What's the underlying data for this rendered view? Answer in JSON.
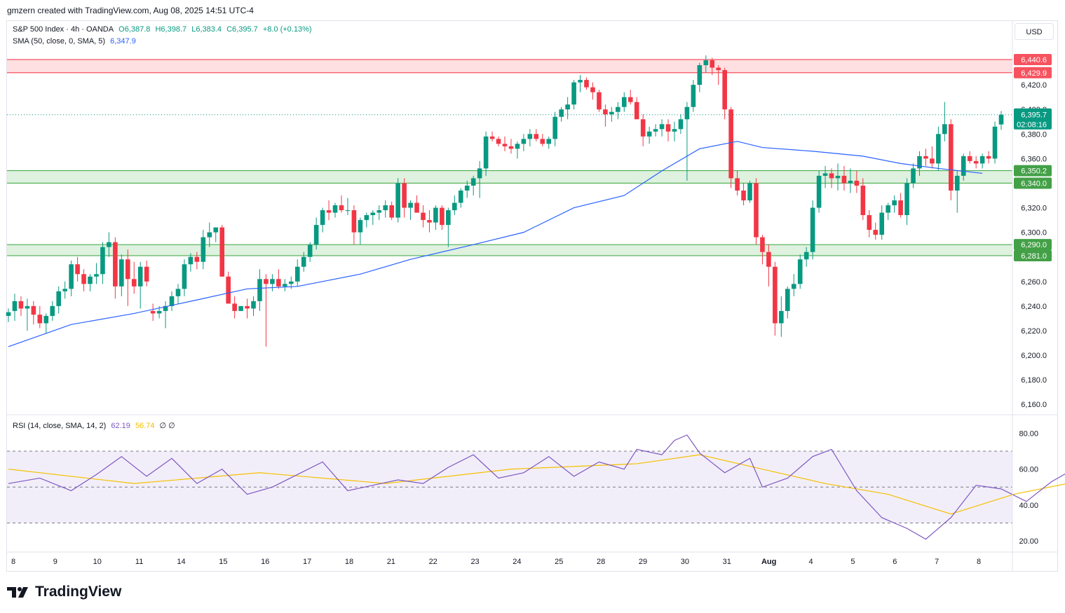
{
  "header": {
    "text": "gmzern created with TradingView.com, Aug 08, 2025 14:51 UTC-4"
  },
  "legend": {
    "symbol": "S&P 500 Index · 4h · OANDA",
    "o": "O6,387.8",
    "h": "H6,398.7",
    "l": "L6,383.4",
    "c": "C6,395.7",
    "chg": "+8.0 (+0.13%)",
    "sma_label": "SMA (50, close, 0, SMA, 5)",
    "sma_value": "6,347.9",
    "rsi_label": "RSI (14, close, SMA, 14, 2)",
    "rsi_value": "62.19",
    "rsi_sma_value": "56.74",
    "rsi_extra": "∅ ∅"
  },
  "currency": "USD",
  "brand": "TradingView",
  "colors": {
    "up": "#089981",
    "down": "#f23645",
    "sma": "#2962ff",
    "rsi": "#7e57c2",
    "rsi_sma": "#f5c000",
    "zone_red": "#f7525f",
    "zone_green": "#4caf50"
  },
  "chart_data": {
    "type": "candlestick",
    "symbol": "S&P 500 Index",
    "interval": "4h",
    "ylim": [
      6155,
      6448
    ],
    "price_ticks": [
      6160,
      6180,
      6200,
      6220,
      6240,
      6260,
      6280,
      6300,
      6320,
      6340,
      6360,
      6380,
      6400,
      6420
    ],
    "price_tick_labels": [
      "6,160.0",
      "6,180.0",
      "6,200.0",
      "6,220.0",
      "6,240.0",
      "6,260.0",
      "6,280.0",
      "6,300.0",
      "6,320.0",
      "6,340.0",
      "6,360.0",
      "6,380.0",
      "6,400.0",
      "6,420.0"
    ],
    "x_labels": [
      "8",
      "9",
      "10",
      "11",
      "14",
      "15",
      "16",
      "17",
      "18",
      "21",
      "22",
      "23",
      "24",
      "25",
      "28",
      "29",
      "30",
      "31",
      "Aug",
      "4",
      "5",
      "6",
      "7",
      "8"
    ],
    "zones": [
      {
        "color": "red",
        "low": 6429.9,
        "high": 6440.6,
        "low_label": "6,429.9",
        "high_label": "6,440.6"
      },
      {
        "color": "green",
        "low": 6340.0,
        "high": 6350.2,
        "low_label": "6,340.0",
        "high_label": "6,350.2"
      },
      {
        "color": "green",
        "low": 6281.0,
        "high": 6290.0,
        "low_label": "6,281.0",
        "high_label": "6,290.0"
      }
    ],
    "last_price": 6395.7,
    "last_price_label": "6,395.7",
    "countdown": "02:08:16",
    "candles": [
      [
        6232,
        6238,
        6227,
        6235
      ],
      [
        6236,
        6250,
        6228,
        6244
      ],
      [
        6244,
        6248,
        6232,
        6238
      ],
      [
        6238,
        6246,
        6220,
        6240
      ],
      [
        6240,
        6244,
        6225,
        6233
      ],
      [
        6233,
        6240,
        6222,
        6226
      ],
      [
        6226,
        6234,
        6218,
        6232
      ],
      [
        6232,
        6244,
        6228,
        6240
      ],
      [
        6240,
        6256,
        6234,
        6252
      ],
      [
        6252,
        6260,
        6246,
        6254
      ],
      [
        6254,
        6277,
        6248,
        6274
      ],
      [
        6274,
        6280,
        6260,
        6266
      ],
      [
        6266,
        6270,
        6252,
        6258
      ],
      [
        6258,
        6266,
        6252,
        6264
      ],
      [
        6264,
        6275,
        6258,
        6266
      ],
      [
        6266,
        6292,
        6258,
        6288
      ],
      [
        6288,
        6300,
        6280,
        6292
      ],
      [
        6292,
        6296,
        6246,
        6256
      ],
      [
        6256,
        6282,
        6248,
        6278
      ],
      [
        6278,
        6286,
        6240,
        6262
      ],
      [
        6262,
        6276,
        6250,
        6256
      ],
      [
        6256,
        6276,
        6238,
        6272
      ],
      [
        6272,
        6277,
        6256,
        6260
      ],
      [
        6236,
        6242,
        6228,
        6234
      ],
      [
        6234,
        6240,
        6230,
        6236
      ],
      [
        6236,
        6244,
        6222,
        6240
      ],
      [
        6240,
        6252,
        6236,
        6248
      ],
      [
        6248,
        6258,
        6242,
        6254
      ],
      [
        6254,
        6278,
        6248,
        6274
      ],
      [
        6274,
        6283,
        6268,
        6280
      ],
      [
        6280,
        6284,
        6270,
        6276
      ],
      [
        6276,
        6302,
        6270,
        6296
      ],
      [
        6296,
        6308,
        6288,
        6300
      ],
      [
        6300,
        6304,
        6292,
        6304
      ],
      [
        6304,
        6306,
        6264,
        6264
      ],
      [
        6264,
        6268,
        6242,
        6242
      ],
      [
        6242,
        6248,
        6230,
        6236
      ],
      [
        6236,
        6240,
        6236,
        6240
      ],
      [
        6240,
        6246,
        6230,
        6238
      ],
      [
        6238,
        6248,
        6232,
        6244
      ],
      [
        6244,
        6270,
        6236,
        6262
      ],
      [
        6262,
        6266,
        6207,
        6258
      ],
      [
        6258,
        6266,
        6252,
        6262
      ],
      [
        6262,
        6270,
        6254,
        6256
      ],
      [
        6256,
        6262,
        6252,
        6258
      ],
      [
        6258,
        6264,
        6254,
        6260
      ],
      [
        6260,
        6278,
        6256,
        6272
      ],
      [
        6272,
        6284,
        6268,
        6280
      ],
      [
        6280,
        6292,
        6276,
        6290
      ],
      [
        6290,
        6312,
        6286,
        6306
      ],
      [
        6306,
        6320,
        6300,
        6318
      ],
      [
        6318,
        6326,
        6310,
        6316
      ],
      [
        6316,
        6324,
        6312,
        6322
      ],
      [
        6322,
        6330,
        6316,
        6318
      ],
      [
        6318,
        6328,
        6314,
        6318
      ],
      [
        6318,
        6322,
        6290,
        6300
      ],
      [
        6300,
        6312,
        6290,
        6310
      ],
      [
        6310,
        6316,
        6304,
        6314
      ],
      [
        6314,
        6318,
        6306,
        6316
      ],
      [
        6316,
        6322,
        6310,
        6318
      ],
      [
        6318,
        6326,
        6312,
        6322
      ],
      [
        6322,
        6325,
        6310,
        6312
      ],
      [
        6312,
        6344,
        6308,
        6340
      ],
      [
        6340,
        6344,
        6312,
        6320
      ],
      [
        6320,
        6326,
        6310,
        6324
      ],
      [
        6324,
        6330,
        6316,
        6316
      ],
      [
        6316,
        6322,
        6304,
        6310
      ],
      [
        6310,
        6318,
        6300,
        6308
      ],
      [
        6308,
        6322,
        6302,
        6320
      ],
      [
        6320,
        6322,
        6302,
        6306
      ],
      [
        6306,
        6320,
        6288,
        6318
      ],
      [
        6318,
        6330,
        6314,
        6324
      ],
      [
        6324,
        6336,
        6320,
        6334
      ],
      [
        6334,
        6342,
        6328,
        6338
      ],
      [
        6338,
        6346,
        6330,
        6344
      ],
      [
        6344,
        6358,
        6328,
        6352
      ],
      [
        6352,
        6382,
        6346,
        6378
      ],
      [
        6378,
        6382,
        6374,
        6376
      ],
      [
        6376,
        6378,
        6370,
        6372
      ],
      [
        6372,
        6378,
        6366,
        6370
      ],
      [
        6370,
        6376,
        6364,
        6368
      ],
      [
        6368,
        6374,
        6360,
        6372
      ],
      [
        6372,
        6380,
        6366,
        6376
      ],
      [
        6376,
        6384,
        6370,
        6380
      ],
      [
        6380,
        6384,
        6374,
        6376
      ],
      [
        6376,
        6380,
        6370,
        6372
      ],
      [
        6372,
        6378,
        6368,
        6376
      ],
      [
        6376,
        6398,
        6370,
        6394
      ],
      [
        6394,
        6402,
        6390,
        6400
      ],
      [
        6400,
        6410,
        6392,
        6404
      ],
      [
        6404,
        6424,
        6400,
        6422
      ],
      [
        6422,
        6428,
        6414,
        6424
      ],
      [
        6424,
        6426,
        6416,
        6418
      ],
      [
        6418,
        6422,
        6408,
        6414
      ],
      [
        6414,
        6416,
        6398,
        6400
      ],
      [
        6400,
        6404,
        6386,
        6396
      ],
      [
        6396,
        6402,
        6390,
        6398
      ],
      [
        6398,
        6406,
        6392,
        6402
      ],
      [
        6402,
        6414,
        6398,
        6410
      ],
      [
        6410,
        6416,
        6404,
        6406
      ],
      [
        6406,
        6410,
        6392,
        6392
      ],
      [
        6392,
        6396,
        6370,
        6378
      ],
      [
        6378,
        6386,
        6372,
        6382
      ],
      [
        6382,
        6388,
        6378,
        6384
      ],
      [
        6384,
        6392,
        6378,
        6388
      ],
      [
        6388,
        6392,
        6374,
        6382
      ],
      [
        6382,
        6390,
        6374,
        6384
      ],
      [
        6384,
        6396,
        6380,
        6392
      ],
      [
        6392,
        6406,
        6342,
        6402
      ],
      [
        6402,
        6424,
        6398,
        6420
      ],
      [
        6420,
        6438,
        6414,
        6436
      ],
      [
        6436,
        6444,
        6430,
        6440
      ],
      [
        6440,
        6442,
        6428,
        6434
      ],
      [
        6434,
        6436,
        6420,
        6432
      ],
      [
        6432,
        6434,
        6392,
        6400
      ],
      [
        6400,
        6402,
        6336,
        6344
      ],
      [
        6344,
        6350,
        6330,
        6334
      ],
      [
        6334,
        6340,
        6322,
        6326
      ],
      [
        6326,
        6342,
        6324,
        6340
      ],
      [
        6340,
        6344,
        6290,
        6296
      ],
      [
        6296,
        6298,
        6274,
        6284
      ],
      [
        6284,
        6290,
        6256,
        6272
      ],
      [
        6272,
        6276,
        6216,
        6226
      ],
      [
        6226,
        6248,
        6215,
        6236
      ],
      [
        6236,
        6256,
        6230,
        6254
      ],
      [
        6254,
        6266,
        6248,
        6258
      ],
      [
        6258,
        6282,
        6254,
        6278
      ],
      [
        6278,
        6288,
        6272,
        6284
      ],
      [
        6284,
        6326,
        6278,
        6320
      ],
      [
        6320,
        6350,
        6316,
        6346
      ],
      [
        6346,
        6354,
        6336,
        6348
      ],
      [
        6348,
        6352,
        6336,
        6344
      ],
      [
        6344,
        6356,
        6334,
        6346
      ],
      [
        6346,
        6354,
        6334,
        6340
      ],
      [
        6340,
        6352,
        6332,
        6342
      ],
      [
        6342,
        6350,
        6332,
        6338
      ],
      [
        6338,
        6344,
        6310,
        6314
      ],
      [
        6314,
        6318,
        6296,
        6302
      ],
      [
        6302,
        6308,
        6294,
        6298
      ],
      [
        6298,
        6322,
        6294,
        6316
      ],
      [
        6316,
        6324,
        6310,
        6322
      ],
      [
        6322,
        6330,
        6316,
        6326
      ],
      [
        6326,
        6332,
        6312,
        6314
      ],
      [
        6314,
        6344,
        6306,
        6340
      ],
      [
        6340,
        6356,
        6336,
        6352
      ],
      [
        6352,
        6366,
        6346,
        6362
      ],
      [
        6362,
        6368,
        6354,
        6360
      ],
      [
        6360,
        6370,
        6352,
        6356
      ],
      [
        6356,
        6386,
        6350,
        6380
      ],
      [
        6380,
        6406,
        6374,
        6388
      ],
      [
        6388,
        6392,
        6326,
        6334
      ],
      [
        6334,
        6350,
        6316,
        6346
      ],
      [
        6346,
        6364,
        6342,
        6362
      ],
      [
        6362,
        6366,
        6356,
        6358
      ],
      [
        6358,
        6362,
        6352,
        6356
      ],
      [
        6356,
        6364,
        6352,
        6362
      ],
      [
        6362,
        6366,
        6356,
        6360
      ],
      [
        6360,
        6390,
        6356,
        6386
      ],
      [
        6387.8,
        6398.7,
        6383.4,
        6395.7
      ]
    ],
    "sma": [
      [
        0,
        6207
      ],
      [
        10,
        6225
      ],
      [
        20,
        6234
      ],
      [
        30,
        6245
      ],
      [
        38,
        6254
      ],
      [
        46,
        6256
      ],
      [
        56,
        6266
      ],
      [
        64,
        6278
      ],
      [
        74,
        6290
      ],
      [
        82,
        6300
      ],
      [
        90,
        6320
      ],
      [
        98,
        6330
      ],
      [
        104,
        6350
      ],
      [
        110,
        6368
      ],
      [
        116,
        6374
      ],
      [
        120,
        6369
      ],
      [
        128,
        6366
      ],
      [
        136,
        6362
      ],
      [
        142,
        6356
      ],
      [
        148,
        6352
      ],
      [
        155,
        6348
      ]
    ],
    "rsi_ylim": [
      15,
      86
    ],
    "rsi_ticks": [
      20,
      40,
      60,
      80
    ],
    "rsi_tick_labels": [
      "20.00",
      "40.00",
      "60.00",
      "80.00"
    ],
    "rsi_bands": [
      30,
      50,
      70
    ],
    "rsi": [
      [
        0,
        52
      ],
      [
        5,
        55
      ],
      [
        10,
        48
      ],
      [
        14,
        57
      ],
      [
        18,
        67
      ],
      [
        22,
        56
      ],
      [
        26,
        66
      ],
      [
        30,
        52
      ],
      [
        34,
        60
      ],
      [
        38,
        46
      ],
      [
        42,
        50
      ],
      [
        46,
        57
      ],
      [
        50,
        64
      ],
      [
        54,
        48
      ],
      [
        58,
        51
      ],
      [
        62,
        54
      ],
      [
        66,
        52
      ],
      [
        70,
        61
      ],
      [
        74,
        68
      ],
      [
        78,
        55
      ],
      [
        82,
        58
      ],
      [
        86,
        67
      ],
      [
        90,
        56
      ],
      [
        94,
        64
      ],
      [
        98,
        60
      ],
      [
        100,
        71
      ],
      [
        104,
        68
      ],
      [
        106,
        76
      ],
      [
        108,
        79
      ],
      [
        110,
        69
      ],
      [
        114,
        58
      ],
      [
        118,
        66
      ],
      [
        120,
        50
      ],
      [
        124,
        55
      ],
      [
        128,
        67
      ],
      [
        131,
        71
      ],
      [
        135,
        48
      ],
      [
        139,
        33
      ],
      [
        143,
        27
      ],
      [
        146,
        21
      ],
      [
        150,
        33
      ],
      [
        154,
        51
      ],
      [
        158,
        49
      ],
      [
        162,
        42
      ],
      [
        166,
        53
      ],
      [
        170,
        61
      ],
      [
        173,
        51
      ],
      [
        177,
        54
      ],
      [
        181,
        53
      ],
      [
        184,
        62
      ]
    ],
    "rsi_sma": [
      [
        0,
        60
      ],
      [
        20,
        52
      ],
      [
        40,
        58
      ],
      [
        60,
        52
      ],
      [
        80,
        60
      ],
      [
        100,
        63
      ],
      [
        110,
        68
      ],
      [
        120,
        60
      ],
      [
        130,
        52
      ],
      [
        140,
        46
      ],
      [
        150,
        35
      ],
      [
        160,
        46
      ],
      [
        170,
        53
      ],
      [
        177,
        55
      ],
      [
        184,
        58
      ]
    ]
  }
}
